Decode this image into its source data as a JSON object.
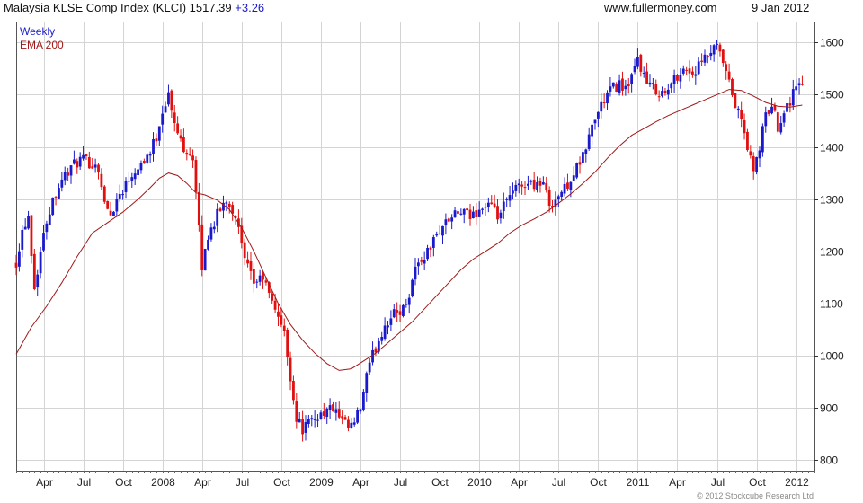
{
  "header": {
    "title": "Malaysia KLSE Comp Index (KLCI) 1517.39",
    "change": "+3.26",
    "site": "www.fullermoney.com",
    "date": "9 Jan 2012"
  },
  "legend": {
    "weekly": "Weekly",
    "ema": "EMA 200"
  },
  "copyright": "© 2012 Stockcube Research Ltd",
  "colors": {
    "up": "#1a1acc",
    "down": "#e01010",
    "ema": "#a01818",
    "grid": "#d4d4d4",
    "axis": "#333333"
  },
  "chart_data": {
    "type": "line",
    "title": "Malaysia KLSE Comp Index (KLCI)",
    "frequency": "Weekly",
    "xlabel": "",
    "ylabel": "",
    "ylim": [
      780,
      1640
    ],
    "xlim": [
      0,
      262
    ],
    "y_ticks": [
      800,
      900,
      1000,
      1100,
      1200,
      1300,
      1400,
      1500,
      1600
    ],
    "x_ticks": [
      {
        "label": "Apr",
        "t": 9
      },
      {
        "label": "Jul",
        "t": 22
      },
      {
        "label": "Oct",
        "t": 35
      },
      {
        "label": "2008",
        "t": 48
      },
      {
        "label": "Apr",
        "t": 61
      },
      {
        "label": "Jul",
        "t": 74
      },
      {
        "label": "Oct",
        "t": 87
      },
      {
        "label": "2009",
        "t": 100
      },
      {
        "label": "Apr",
        "t": 113
      },
      {
        "label": "Jul",
        "t": 126
      },
      {
        "label": "Oct",
        "t": 139
      },
      {
        "label": "2010",
        "t": 152
      },
      {
        "label": "Apr",
        "t": 165
      },
      {
        "label": "Jul",
        "t": 178
      },
      {
        "label": "Oct",
        "t": 191
      },
      {
        "label": "2011",
        "t": 204
      },
      {
        "label": "Apr",
        "t": 217
      },
      {
        "label": "Jul",
        "t": 230
      },
      {
        "label": "Oct",
        "t": 243
      },
      {
        "label": "2012",
        "t": 256
      }
    ],
    "price_anchors": [
      [
        0,
        1180
      ],
      [
        2,
        1240
      ],
      [
        4,
        1270
      ],
      [
        6,
        1130
      ],
      [
        8,
        1200
      ],
      [
        10,
        1260
      ],
      [
        12,
        1300
      ],
      [
        15,
        1340
      ],
      [
        18,
        1360
      ],
      [
        21,
        1375
      ],
      [
        24,
        1370
      ],
      [
        27,
        1360
      ],
      [
        29,
        1290
      ],
      [
        31,
        1270
      ],
      [
        33,
        1300
      ],
      [
        35,
        1320
      ],
      [
        38,
        1350
      ],
      [
        41,
        1370
      ],
      [
        44,
        1390
      ],
      [
        46,
        1420
      ],
      [
        48,
        1470
      ],
      [
        50,
        1500
      ],
      [
        52,
        1440
      ],
      [
        55,
        1400
      ],
      [
        58,
        1380
      ],
      [
        61,
        1170
      ],
      [
        63,
        1230
      ],
      [
        66,
        1270
      ],
      [
        69,
        1300
      ],
      [
        72,
        1270
      ],
      [
        75,
        1180
      ],
      [
        78,
        1140
      ],
      [
        81,
        1150
      ],
      [
        84,
        1100
      ],
      [
        86,
        1080
      ],
      [
        88,
        1040
      ],
      [
        90,
        960
      ],
      [
        92,
        880
      ],
      [
        94,
        860
      ],
      [
        96,
        870
      ],
      [
        98,
        880
      ],
      [
        100,
        890
      ],
      [
        102,
        895
      ],
      [
        104,
        900
      ],
      [
        106,
        880
      ],
      [
        109,
        860
      ],
      [
        111,
        870
      ],
      [
        113,
        900
      ],
      [
        115,
        960
      ],
      [
        117,
        1000
      ],
      [
        119,
        1030
      ],
      [
        121,
        1060
      ],
      [
        124,
        1080
      ],
      [
        127,
        1090
      ],
      [
        129,
        1120
      ],
      [
        131,
        1170
      ],
      [
        134,
        1190
      ],
      [
        137,
        1220
      ],
      [
        140,
        1250
      ],
      [
        143,
        1265
      ],
      [
        146,
        1275
      ],
      [
        149,
        1265
      ],
      [
        152,
        1280
      ],
      [
        155,
        1290
      ],
      [
        158,
        1265
      ],
      [
        161,
        1295
      ],
      [
        164,
        1320
      ],
      [
        167,
        1330
      ],
      [
        170,
        1330
      ],
      [
        173,
        1330
      ],
      [
        175,
        1290
      ],
      [
        177,
        1300
      ],
      [
        180,
        1320
      ],
      [
        183,
        1350
      ],
      [
        186,
        1380
      ],
      [
        189,
        1440
      ],
      [
        192,
        1480
      ],
      [
        195,
        1510
      ],
      [
        198,
        1520
      ],
      [
        201,
        1510
      ],
      [
        204,
        1570
      ],
      [
        207,
        1520
      ],
      [
        210,
        1510
      ],
      [
        213,
        1500
      ],
      [
        216,
        1530
      ],
      [
        219,
        1550
      ],
      [
        222,
        1540
      ],
      [
        225,
        1560
      ],
      [
        228,
        1580
      ],
      [
        230,
        1590
      ],
      [
        232,
        1560
      ],
      [
        234,
        1520
      ],
      [
        236,
        1480
      ],
      [
        238,
        1450
      ],
      [
        240,
        1400
      ],
      [
        242,
        1350
      ],
      [
        244,
        1400
      ],
      [
        246,
        1460
      ],
      [
        248,
        1480
      ],
      [
        250,
        1440
      ],
      [
        252,
        1470
      ],
      [
        254,
        1490
      ],
      [
        256,
        1520
      ],
      [
        258,
        1517.39
      ]
    ],
    "ema200_anchors": [
      [
        0,
        1003
      ],
      [
        5,
        1055
      ],
      [
        10,
        1095
      ],
      [
        15,
        1140
      ],
      [
        20,
        1190
      ],
      [
        25,
        1235
      ],
      [
        30,
        1255
      ],
      [
        35,
        1275
      ],
      [
        40,
        1300
      ],
      [
        44,
        1322
      ],
      [
        47,
        1340
      ],
      [
        50,
        1350
      ],
      [
        53,
        1345
      ],
      [
        56,
        1330
      ],
      [
        59,
        1312
      ],
      [
        62,
        1308
      ],
      [
        66,
        1298
      ],
      [
        70,
        1280
      ],
      [
        74,
        1245
      ],
      [
        78,
        1200
      ],
      [
        82,
        1150
      ],
      [
        86,
        1100
      ],
      [
        90,
        1060
      ],
      [
        94,
        1030
      ],
      [
        98,
        1005
      ],
      [
        102,
        985
      ],
      [
        106,
        972
      ],
      [
        110,
        975
      ],
      [
        114,
        990
      ],
      [
        118,
        1005
      ],
      [
        122,
        1025
      ],
      [
        126,
        1045
      ],
      [
        130,
        1065
      ],
      [
        134,
        1090
      ],
      [
        138,
        1115
      ],
      [
        142,
        1140
      ],
      [
        146,
        1165
      ],
      [
        150,
        1185
      ],
      [
        154,
        1200
      ],
      [
        158,
        1215
      ],
      [
        162,
        1235
      ],
      [
        166,
        1250
      ],
      [
        170,
        1262
      ],
      [
        174,
        1275
      ],
      [
        178,
        1292
      ],
      [
        182,
        1310
      ],
      [
        186,
        1330
      ],
      [
        190,
        1352
      ],
      [
        194,
        1378
      ],
      [
        198,
        1402
      ],
      [
        202,
        1422
      ],
      [
        206,
        1435
      ],
      [
        210,
        1448
      ],
      [
        214,
        1460
      ],
      [
        218,
        1470
      ],
      [
        222,
        1480
      ],
      [
        226,
        1490
      ],
      [
        230,
        1500
      ],
      [
        234,
        1510
      ],
      [
        238,
        1508
      ],
      [
        242,
        1497
      ],
      [
        246,
        1485
      ],
      [
        250,
        1478
      ],
      [
        254,
        1476
      ],
      [
        258,
        1480
      ]
    ]
  }
}
